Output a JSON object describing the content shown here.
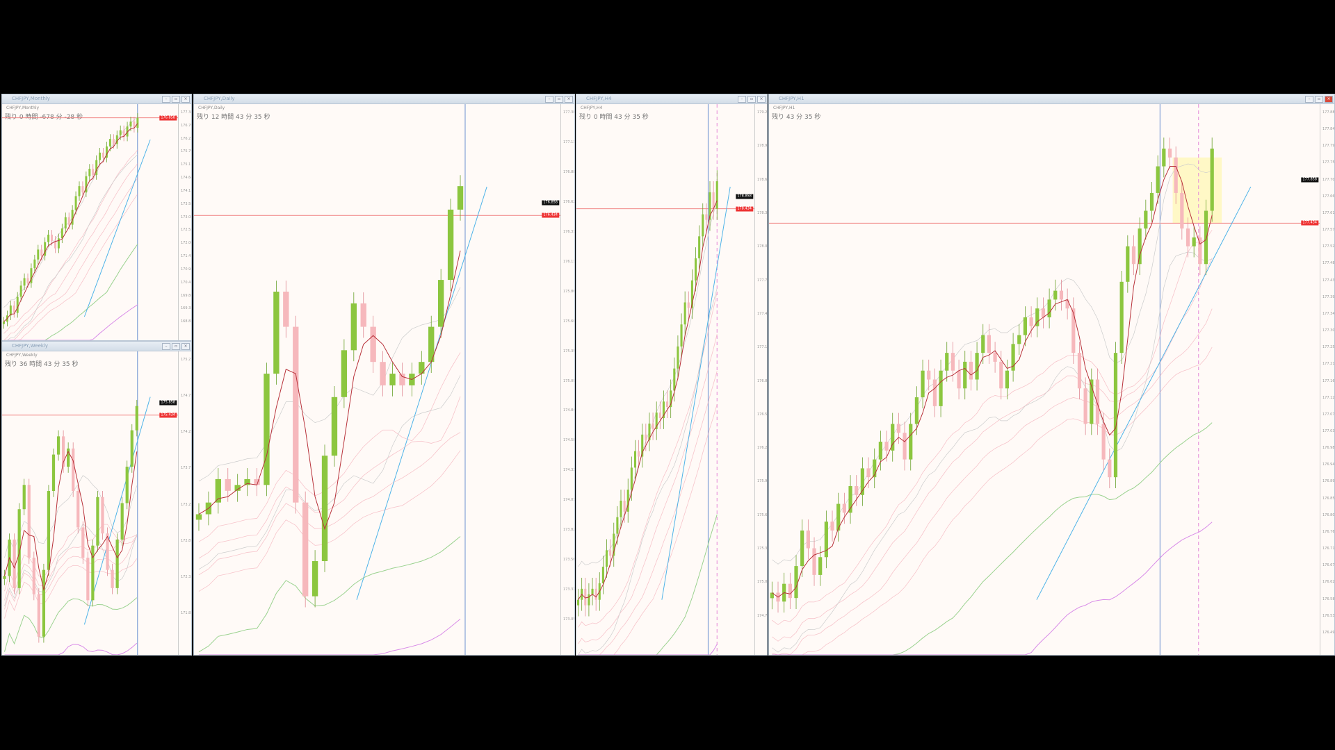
{
  "colors": {
    "up": "#8cc63f",
    "down": "#f6b8bc",
    "ma": "#b8323a",
    "hline": "#f08080",
    "vline": "#6a8fd0",
    "trend": "#4fb3e8",
    "ribbon": "#f2a0ae",
    "ma200": "#9bd28f",
    "ma_long": "#d98be8",
    "highlight": "#fff6b0"
  },
  "panels": {
    "monthly": {
      "title": "CHFJPY,Monthly",
      "symbol": "CHFJPY,Monthly",
      "countdown": "残り 0 時間 -678 分 -28 秒",
      "ylim": [
        159,
        178
      ],
      "ticks": [
        "177.385",
        "176.760",
        "176.230",
        "175.700",
        "175.170",
        "174.640",
        "174.110",
        "173.580",
        "173.050",
        "172.520",
        "172.000",
        "171.470",
        "170.940",
        "170.410",
        "169.880",
        "169.350",
        "168.820"
      ],
      "price_label": "176.858",
      "hline": 176.9,
      "closes": [
        160.5,
        161,
        161.8,
        161.2,
        162.5,
        163.4,
        164,
        163.6,
        164.8,
        165.5,
        166.3,
        165.8,
        166.9,
        167.5,
        167,
        166.4,
        167.2,
        168,
        168.9,
        168.3,
        169.5,
        170.6,
        171.4,
        170.9,
        172.2,
        172.8,
        172.3,
        173.5,
        174.1,
        173.7,
        174.6,
        175.2,
        174.8,
        175.5,
        175.9,
        175.4,
        176.2,
        176.6,
        176.1,
        176.9
      ]
    },
    "weekly": {
      "title": "CHFJPY,Weekly",
      "symbol": "CHFJPY,Weekly",
      "countdown": "残り 36 時間 43 分 35 秒",
      "ylim": [
        171.5,
        176.5
      ],
      "ticks": [
        "175.210",
        "174.730",
        "174.250",
        "173.770",
        "173.290",
        "172.810",
        "172.330",
        "171.850"
      ],
      "price_label": "175.858",
      "price_label2": "175.434",
      "hline": 175.45,
      "closes": [
        172.8,
        173.4,
        172.6,
        173.9,
        174.3,
        173.1,
        172.5,
        171.8,
        172.9,
        174.2,
        174.8,
        175.1,
        174.6,
        174.9,
        174.2,
        173.6,
        173.1,
        172.4,
        173.3,
        174.1,
        173.5,
        172.9,
        172.6,
        173.4,
        174.0,
        174.6,
        175.2,
        175.6
      ]
    },
    "daily": {
      "title": "CHFJPY,Daily",
      "symbol": "CHFJPY,Daily",
      "countdown": "残り 12 時間 43 分 35 秒",
      "ylim": [
        172.8,
        177.5
      ],
      "ticks": [
        "177.385",
        "177.130",
        "176.880",
        "176.620",
        "176.370",
        "176.110",
        "175.860",
        "175.600",
        "175.350",
        "175.090",
        "174.840",
        "174.580",
        "174.330",
        "174.070",
        "173.820",
        "173.560",
        "173.310",
        "173.050"
      ],
      "price_label": "176.858",
      "price_label2": "176.434",
      "hline": 176.55,
      "closes": [
        174.0,
        174.1,
        174.3,
        174.2,
        174.25,
        174.3,
        174.25,
        175.2,
        175.9,
        175.6,
        174.1,
        173.3,
        173.6,
        174.5,
        175.0,
        175.4,
        175.8,
        175.6,
        175.3,
        175.1,
        175.2,
        175.1,
        175.2,
        175.3,
        175.6,
        176.0,
        176.6,
        176.8
      ]
    },
    "h4": {
      "title": "CHFJPY,H4",
      "symbol": "CHFJPY,H4",
      "countdown": "残り 0 時間 43 分 35 秒",
      "ylim": [
        174.5,
        179.5
      ],
      "ticks": [
        "179.2",
        "178.9",
        "178.6",
        "178.3",
        "178.0",
        "177.7",
        "177.4",
        "177.1",
        "176.8",
        "176.5",
        "176.2",
        "175.9",
        "175.6",
        "175.3",
        "175.0",
        "174.7"
      ],
      "price_label": "178.858",
      "price_label2": "178.434",
      "hline": 178.55,
      "closes": [
        175.0,
        175.1,
        174.95,
        175.05,
        175.1,
        175.0,
        175.15,
        175.3,
        175.45,
        175.4,
        175.6,
        175.75,
        175.9,
        175.8,
        176.0,
        176.2,
        176.35,
        176.3,
        176.5,
        176.45,
        176.6,
        176.55,
        176.7,
        176.65,
        176.8,
        176.75,
        176.9,
        177.1,
        177.3,
        177.5,
        177.7,
        177.65,
        177.9,
        178.1,
        178.3,
        178.5,
        178.45,
        178.7,
        178.55,
        178.8
      ]
    },
    "h1": {
      "title": "CHFJPY,H1",
      "symbol": "CHFJPY,H1",
      "countdown": "残り 43 分 35 秒",
      "ylim": [
        175.0,
        178.1
      ],
      "ticks": [
        "177.885",
        "177.840",
        "177.795",
        "177.750",
        "177.705",
        "177.660",
        "177.615",
        "177.570",
        "177.525",
        "177.480",
        "177.435",
        "177.390",
        "177.345",
        "177.300",
        "177.255",
        "177.210",
        "177.165",
        "177.120",
        "177.075",
        "177.030",
        "176.985",
        "176.940",
        "176.895",
        "176.850",
        "176.805",
        "176.760",
        "176.715",
        "176.670",
        "176.625",
        "176.580",
        "176.535",
        "176.490"
      ],
      "price_label": "177.858",
      "price_label2": "177.434",
      "hline": 177.43,
      "closes": [
        175.35,
        175.3,
        175.4,
        175.32,
        175.5,
        175.7,
        175.6,
        175.45,
        175.55,
        175.75,
        175.7,
        175.85,
        175.8,
        175.95,
        175.9,
        176.05,
        176.0,
        176.1,
        176.2,
        176.15,
        176.3,
        176.25,
        176.1,
        176.3,
        176.45,
        176.6,
        176.55,
        176.4,
        176.6,
        176.7,
        176.6,
        176.5,
        176.65,
        176.55,
        176.7,
        176.8,
        176.7,
        176.65,
        176.5,
        176.6,
        176.75,
        176.8,
        176.9,
        176.85,
        176.95,
        176.9,
        177.0,
        177.05,
        177.0,
        176.95,
        176.7,
        176.5,
        176.3,
        176.55,
        176.3,
        176.1,
        176.0,
        176.7,
        177.1,
        177.3,
        177.2,
        177.4,
        177.5,
        177.6,
        177.75,
        177.85,
        177.8,
        177.6,
        177.4,
        177.3,
        177.35,
        177.2,
        177.5,
        177.85
      ]
    }
  }
}
